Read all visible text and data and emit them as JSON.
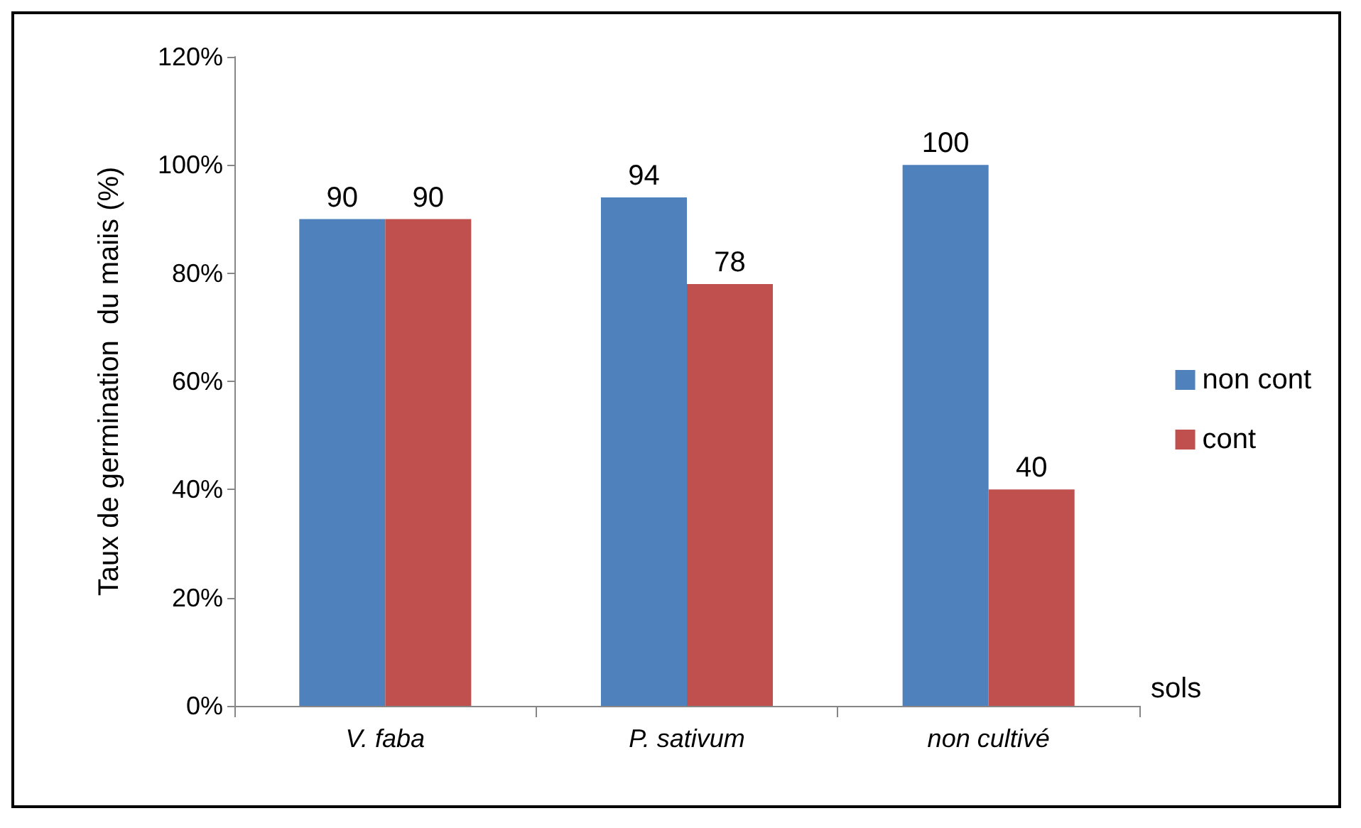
{
  "chart_data": {
    "type": "bar",
    "xlabel": "sols",
    "ylabel": "Taux de germination  du maiis (%)",
    "categories": [
      "V. faba",
      "P. sativum",
      "non cultivé"
    ],
    "series": [
      {
        "name": "non cont",
        "color": "#4f81bd",
        "values": [
          90,
          94,
          100
        ]
      },
      {
        "name": "cont",
        "color": "#c0504d",
        "values": [
          90,
          78,
          40
        ]
      }
    ],
    "ylim": [
      0,
      120
    ],
    "yticks": [
      {
        "value": 0,
        "label": "0%"
      },
      {
        "value": 20,
        "label": "20%"
      },
      {
        "value": 40,
        "label": "40%"
      },
      {
        "value": 60,
        "label": "60%"
      },
      {
        "value": 80,
        "label": "80%"
      },
      {
        "value": 100,
        "label": "100%"
      },
      {
        "value": 120,
        "label": "120%"
      }
    ],
    "data_labels": true,
    "grid": false,
    "legend": "right"
  }
}
